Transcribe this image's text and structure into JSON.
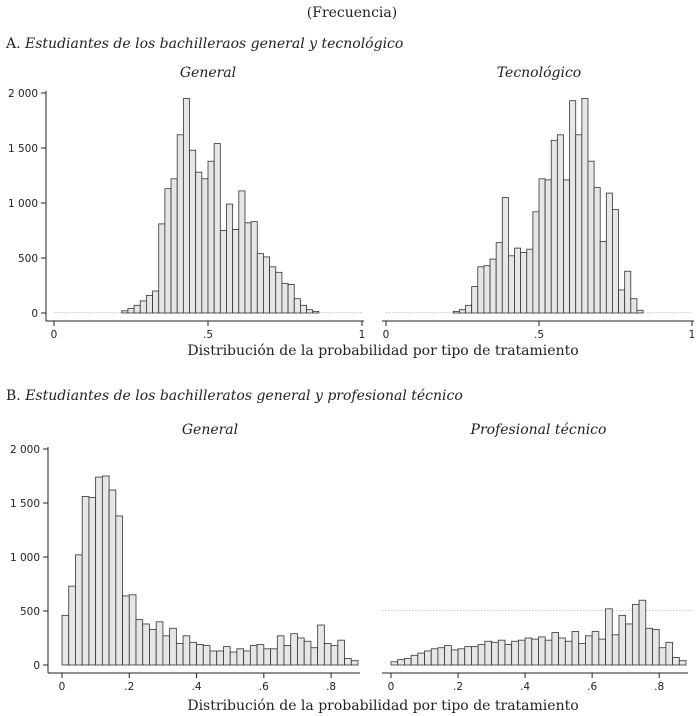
{
  "header": {
    "unit": "(Frecuencia)"
  },
  "sections": [
    {
      "label": "A.",
      "title": "Estudiantes de los bachilleraos general y tecnológico"
    },
    {
      "label": "B.",
      "title": "Estudiantes de los bachilleratos general y profesional técnico"
    }
  ],
  "xlabels": [
    "Distribución de la probabilidad por tipo de tratamiento",
    "Distribución de la probabilidad por tipo de tratamiento"
  ],
  "chart_data": [
    {
      "type": "bar",
      "title": "General",
      "xlim": [
        0,
        1
      ],
      "ylim": [
        0,
        2000
      ],
      "yticks": [
        0,
        500,
        1000,
        1500,
        2000
      ],
      "ytick_labels": [
        "0",
        "500",
        "1 000",
        "1 500",
        "2 000"
      ],
      "xticks": [
        0,
        0.5,
        1
      ],
      "xtick_labels": [
        "0",
        ".5",
        "1"
      ],
      "bin_width": 0.02,
      "bins_start": [
        0.22,
        0.24,
        0.26,
        0.28,
        0.3,
        0.32,
        0.34,
        0.36,
        0.38,
        0.4,
        0.42,
        0.44,
        0.46,
        0.48,
        0.5,
        0.52,
        0.54,
        0.56,
        0.58,
        0.6,
        0.62,
        0.64,
        0.66,
        0.68,
        0.7,
        0.72,
        0.74,
        0.76,
        0.78,
        0.8,
        0.82,
        0.84
      ],
      "values": [
        20,
        40,
        70,
        110,
        160,
        200,
        810,
        1130,
        1220,
        1620,
        1950,
        1480,
        1280,
        1220,
        1380,
        1540,
        750,
        990,
        760,
        1110,
        820,
        830,
        540,
        510,
        420,
        370,
        270,
        260,
        130,
        70,
        30,
        15
      ]
    },
    {
      "type": "bar",
      "title": "Tecnológico",
      "xlim": [
        0,
        1
      ],
      "ylim": [
        0,
        2000
      ],
      "xticks": [
        0,
        0.5,
        1
      ],
      "xtick_labels": [
        "0",
        ".5",
        "1"
      ],
      "bin_width": 0.02,
      "bins_start": [
        0.22,
        0.24,
        0.26,
        0.28,
        0.3,
        0.32,
        0.34,
        0.36,
        0.38,
        0.4,
        0.42,
        0.44,
        0.46,
        0.48,
        0.5,
        0.52,
        0.54,
        0.56,
        0.58,
        0.6,
        0.62,
        0.64,
        0.66,
        0.68,
        0.7,
        0.72,
        0.74,
        0.76,
        0.78,
        0.8,
        0.82
      ],
      "values": [
        15,
        30,
        70,
        240,
        420,
        430,
        490,
        640,
        1050,
        520,
        590,
        550,
        580,
        920,
        1220,
        1210,
        1570,
        1620,
        1210,
        1930,
        1620,
        1950,
        1380,
        1140,
        650,
        1090,
        940,
        210,
        380,
        130,
        25
      ]
    },
    {
      "type": "bar",
      "title": "General",
      "xlim": [
        0,
        0.88
      ],
      "ylim": [
        0,
        2000
      ],
      "yticks": [
        0,
        500,
        1000,
        1500,
        2000
      ],
      "ytick_labels": [
        "0",
        "500",
        "1 000",
        "1 500",
        "2 000"
      ],
      "xticks": [
        0,
        0.2,
        0.4,
        0.6,
        0.8
      ],
      "xtick_labels": [
        "0",
        ".2",
        ".4",
        ".6",
        ".8"
      ],
      "bin_width": 0.02,
      "bins_start": [
        0.0,
        0.02,
        0.04,
        0.06,
        0.08,
        0.1,
        0.12,
        0.14,
        0.16,
        0.18,
        0.2,
        0.22,
        0.24,
        0.26,
        0.28,
        0.3,
        0.32,
        0.34,
        0.36,
        0.38,
        0.4,
        0.42,
        0.44,
        0.46,
        0.48,
        0.5,
        0.52,
        0.54,
        0.56,
        0.58,
        0.6,
        0.62,
        0.64,
        0.66,
        0.68,
        0.7,
        0.72,
        0.74,
        0.76,
        0.78,
        0.8,
        0.82,
        0.84,
        0.86
      ],
      "values": [
        460,
        730,
        1020,
        1560,
        1550,
        1740,
        1750,
        1620,
        1380,
        640,
        650,
        420,
        380,
        330,
        400,
        270,
        340,
        200,
        270,
        210,
        190,
        180,
        130,
        130,
        170,
        120,
        150,
        130,
        180,
        190,
        150,
        150,
        270,
        180,
        290,
        250,
        220,
        160,
        370,
        200,
        180,
        230,
        60,
        40
      ]
    },
    {
      "type": "bar",
      "title": "Profesional técnico",
      "xlim": [
        0,
        0.88
      ],
      "ylim": [
        0,
        2000
      ],
      "xticks": [
        0,
        0.2,
        0.4,
        0.6,
        0.8
      ],
      "xtick_labels": [
        "0",
        ".2",
        ".4",
        ".6",
        ".8"
      ],
      "bin_width": 0.02,
      "bins_start": [
        0.0,
        0.02,
        0.04,
        0.06,
        0.08,
        0.1,
        0.12,
        0.14,
        0.16,
        0.18,
        0.2,
        0.22,
        0.24,
        0.26,
        0.28,
        0.3,
        0.32,
        0.34,
        0.36,
        0.38,
        0.4,
        0.42,
        0.44,
        0.46,
        0.48,
        0.5,
        0.52,
        0.54,
        0.56,
        0.58,
        0.6,
        0.62,
        0.64,
        0.66,
        0.68,
        0.7,
        0.72,
        0.74,
        0.76,
        0.78,
        0.8,
        0.82,
        0.84,
        0.86
      ],
      "values": [
        30,
        50,
        60,
        90,
        110,
        130,
        150,
        160,
        180,
        140,
        150,
        170,
        170,
        190,
        220,
        210,
        230,
        190,
        220,
        230,
        250,
        240,
        260,
        230,
        300,
        250,
        220,
        310,
        200,
        270,
        310,
        240,
        520,
        280,
        460,
        380,
        560,
        600,
        340,
        330,
        160,
        210,
        70,
        40
      ]
    }
  ]
}
